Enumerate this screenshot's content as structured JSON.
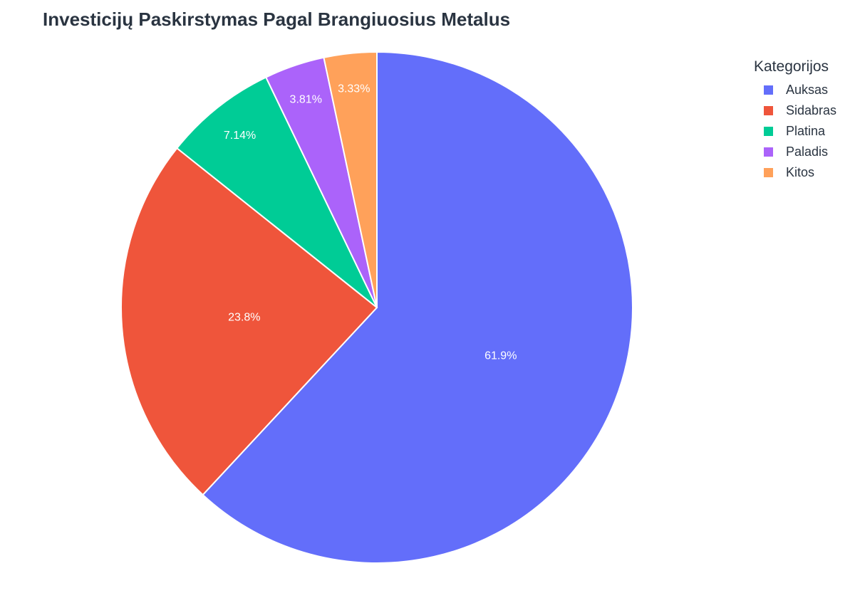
{
  "chart_data": {
    "type": "pie",
    "title": "Investicijų Paskirstymas Pagal Brangiuosius Metalus",
    "legend_title": "Kategorijos",
    "legend_position": "top-right",
    "sort": "descending",
    "direction": "clockwise",
    "slices": [
      {
        "label": "Auksas",
        "value": 61.9,
        "display": "61.9%",
        "color": "#636efa"
      },
      {
        "label": "Sidabras",
        "value": 23.8,
        "display": "23.8%",
        "color": "#ef553b"
      },
      {
        "label": "Platina",
        "value": 7.14,
        "display": "7.14%",
        "color": "#00cc96"
      },
      {
        "label": "Paladis",
        "value": 3.81,
        "display": "3.81%",
        "color": "#ab63fa"
      },
      {
        "label": "Kitos",
        "value": 3.33,
        "display": "3.33%",
        "color": "#ffa15a"
      }
    ]
  }
}
